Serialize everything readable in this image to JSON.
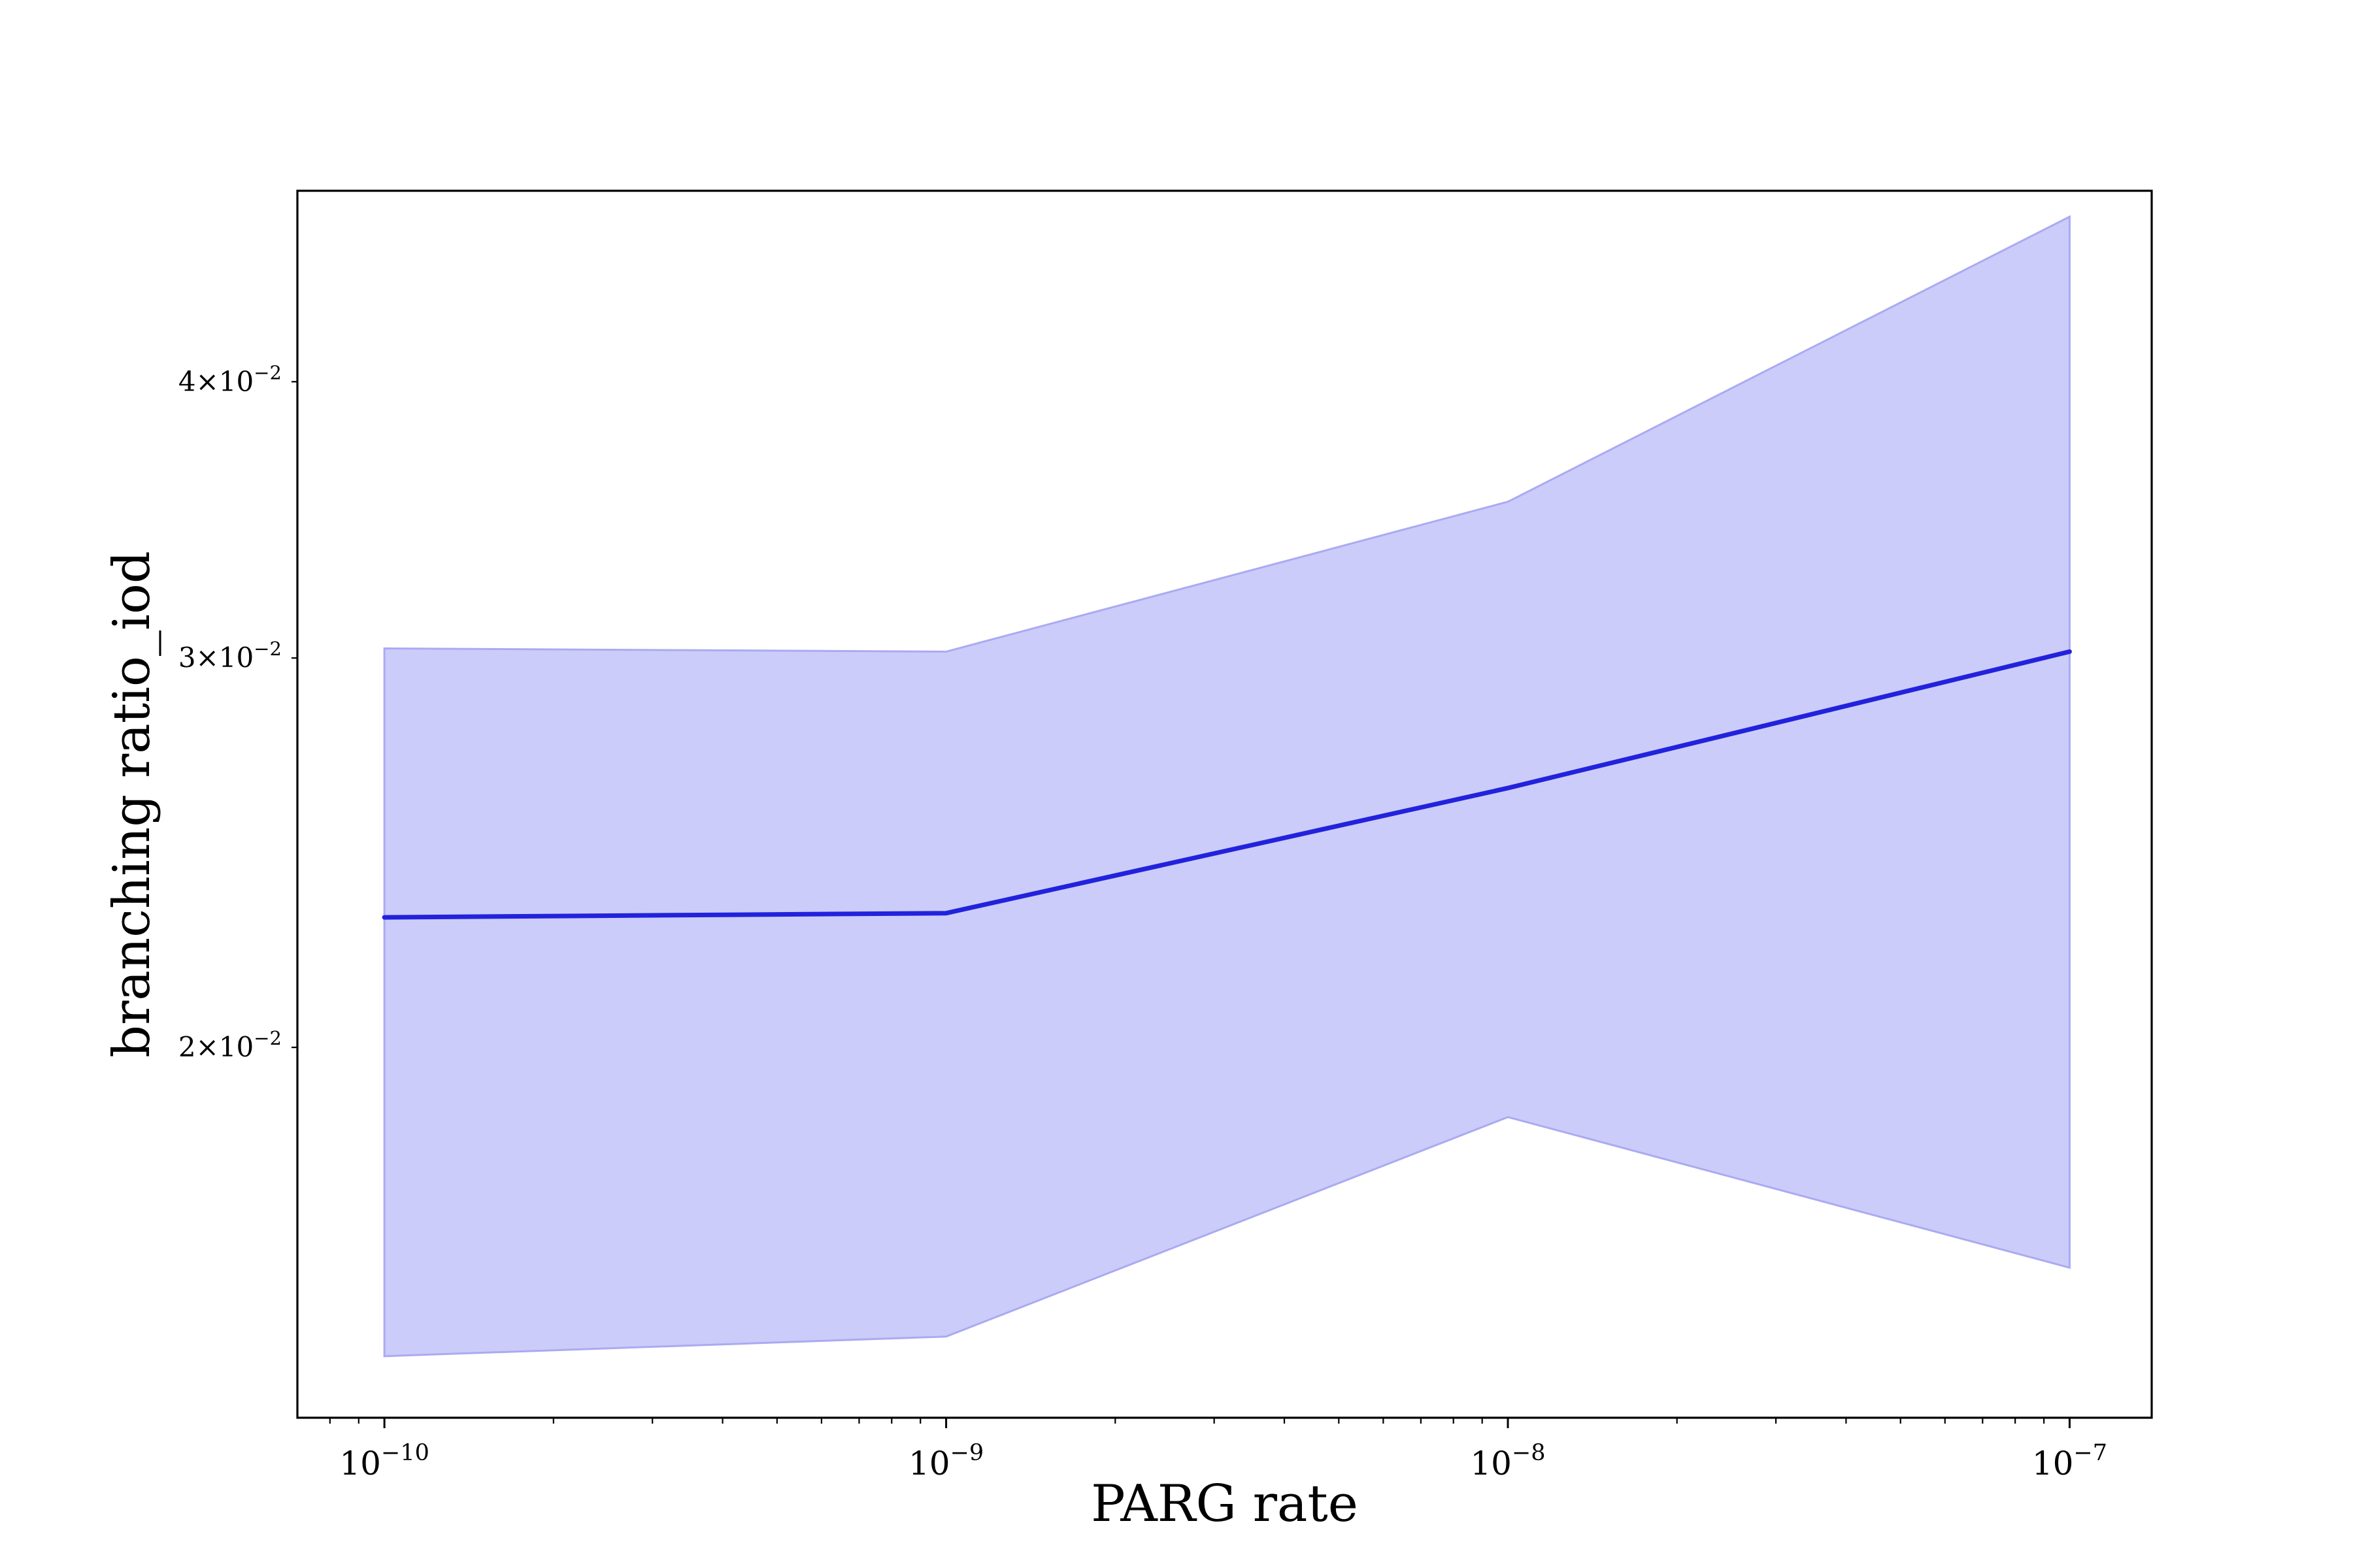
{
  "chart_data": {
    "type": "area",
    "title": "",
    "xlabel": "PARG rate",
    "ylabel": "branching ratio_iod",
    "xscale": "log",
    "yscale": "log",
    "xlim": [
      7e-11,
      1.4e-07
    ],
    "ylim": [
      0.0136,
      0.0488
    ],
    "grid": false,
    "legend": "none",
    "x_ticks": [
      {
        "value": 1e-10,
        "base": "10",
        "exp": "−10"
      },
      {
        "value": 1e-09,
        "base": "10",
        "exp": "−9"
      },
      {
        "value": 1e-08,
        "base": "10",
        "exp": "−8"
      },
      {
        "value": 1e-07,
        "base": "10",
        "exp": "−7"
      }
    ],
    "y_ticks": [
      {
        "value": 0.02,
        "mant": "2",
        "base": "×10",
        "exp": "−2"
      },
      {
        "value": 0.03,
        "mant": "3",
        "base": "×10",
        "exp": "−2"
      },
      {
        "value": 0.04,
        "mant": "4",
        "base": "×10",
        "exp": "−2"
      }
    ],
    "x": [
      1e-10,
      1e-09,
      1e-08,
      1e-07
    ],
    "series": [
      {
        "values": [
          0.0229,
          0.023,
          0.0262,
          0.0302
        ],
        "lower": [
          0.0145,
          0.0148,
          0.0186,
          0.0159
        ],
        "upper": [
          0.0303,
          0.0302,
          0.0353,
          0.0475
        ],
        "line_color": "#2222dd",
        "fill_color": "#ccccfa",
        "fill_edge_color": "#aaaaf2"
      }
    ]
  }
}
